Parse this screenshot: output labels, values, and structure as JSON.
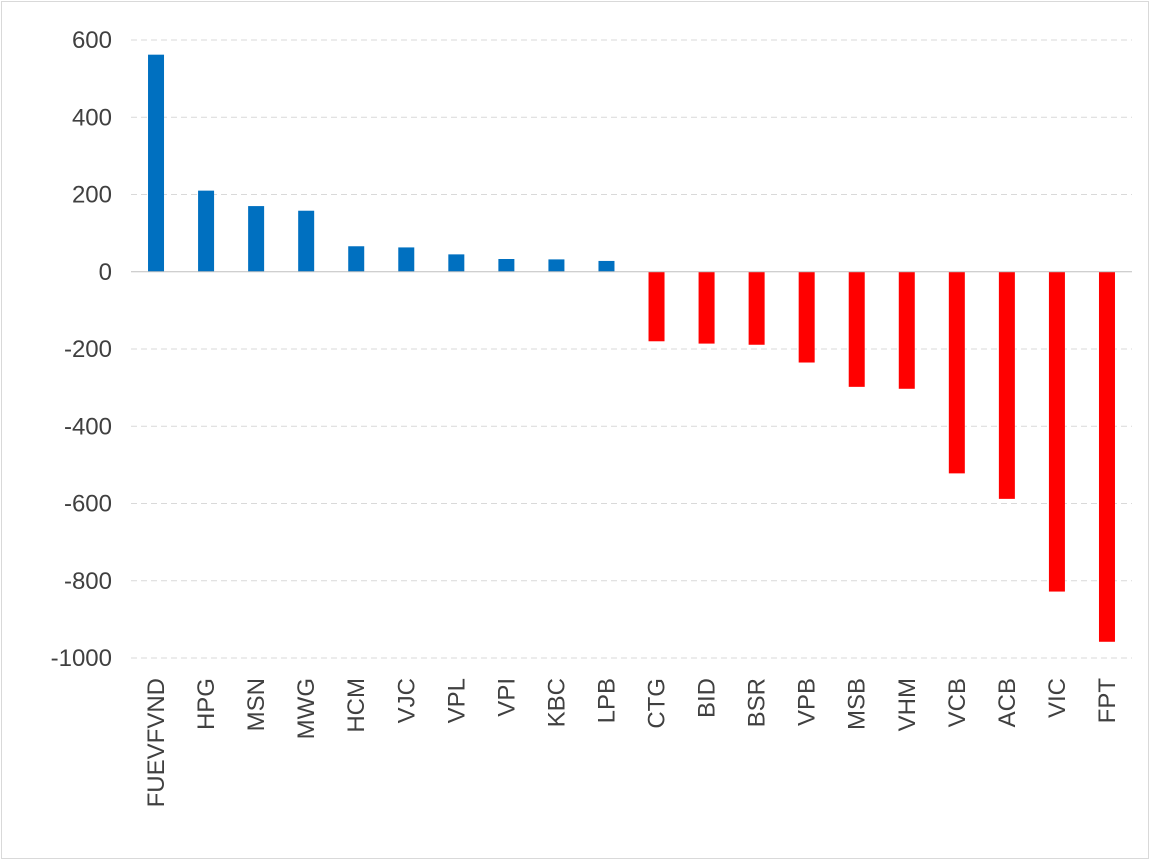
{
  "chart_data": {
    "type": "bar",
    "title": "",
    "xlabel": "",
    "ylabel": "",
    "categories": [
      "FUEVFVND",
      "HPG",
      "MSN",
      "MWG",
      "HCM",
      "VJC",
      "VPL",
      "VPI",
      "KBC",
      "LPB",
      "CTG",
      "BID",
      "BSR",
      "VPB",
      "MSB",
      "VHM",
      "VCB",
      "ACB",
      "VIC",
      "FPT"
    ],
    "values": [
      562,
      210,
      170,
      158,
      66,
      63,
      45,
      33,
      32,
      28,
      -180,
      -186,
      -189,
      -235,
      -298,
      -303,
      -522,
      -588,
      -828,
      -958
    ],
    "ylim": [
      -1000,
      600
    ],
    "yticks": [
      600,
      400,
      200,
      0,
      -200,
      -400,
      -600,
      -800,
      -1000
    ],
    "grid": true,
    "legend": "none",
    "colors": {
      "positive": "#0070c0",
      "negative": "#ff0000",
      "grid": "#d9d9d9",
      "axis_text": "#404040"
    }
  }
}
